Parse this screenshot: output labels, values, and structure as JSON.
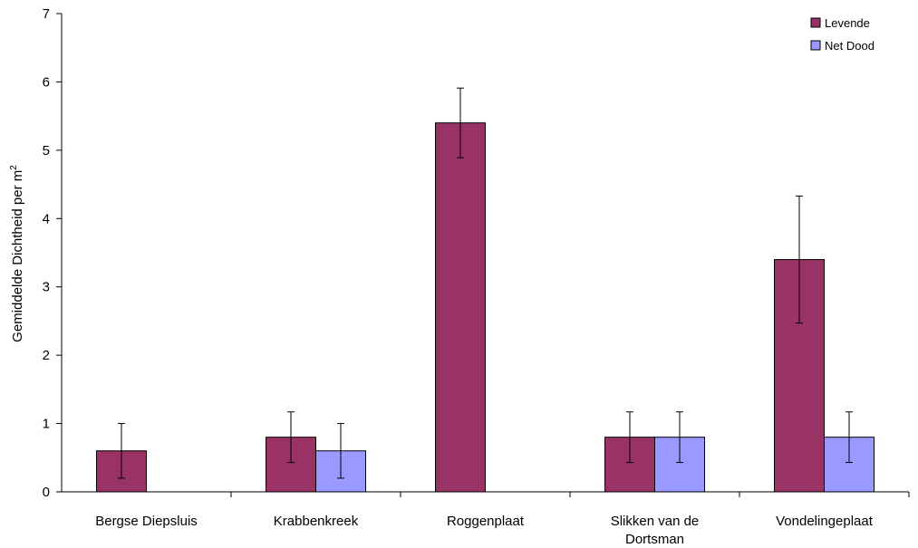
{
  "chart_data": {
    "type": "bar",
    "categories": [
      "Bergse Diepsluis",
      "Krabbenkreek",
      "Roggenplaat",
      "Slikken van de Dortsman",
      "Vondelingeplaat"
    ],
    "category_lines": [
      [
        "Bergse Diepsluis"
      ],
      [
        "Krabbenkreek"
      ],
      [
        "Roggenplaat"
      ],
      [
        "Slikken van de",
        "Dortsman"
      ],
      [
        "Vondelingeplaat"
      ]
    ],
    "series": [
      {
        "name": "Levende",
        "color": "#993366",
        "values": [
          0.6,
          0.8,
          5.4,
          0.8,
          3.4
        ],
        "errors": [
          0.4,
          0.37,
          0.51,
          0.37,
          0.93
        ]
      },
      {
        "name": "Net Dood",
        "color": "#9999ff",
        "values": [
          0.0,
          0.6,
          0.0,
          0.8,
          0.8
        ],
        "errors": [
          0.0,
          0.4,
          0.0,
          0.37,
          0.37
        ]
      }
    ],
    "ylabel": "Gemiddelde Dichtheid per m",
    "ylabel_superscript": "2",
    "ylim": [
      0,
      7
    ],
    "yticks": [
      "0",
      "1",
      "2",
      "3",
      "4",
      "5",
      "6",
      "7"
    ],
    "legend_position": "top-right",
    "grid": false
  }
}
